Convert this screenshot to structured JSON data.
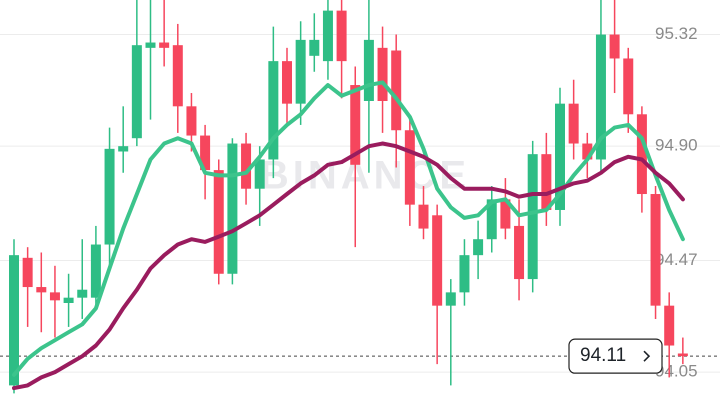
{
  "chart_data": {
    "type": "candlestick",
    "watermark": "BINANCE",
    "up_color": "#2ebd85",
    "down_color": "#f6465d",
    "ylim": [
      93.93,
      95.45
    ],
    "yticks": [
      95.32,
      {
        "value": 94.9,
        "label": "94.90"
      },
      94.47,
      94.05
    ],
    "grid": true,
    "last_price": 94.11,
    "open": [
      94.0,
      94.48,
      94.37,
      94.35,
      94.31,
      94.33,
      94.33,
      94.53,
      94.88,
      94.93,
      95.27,
      95.29,
      95.28,
      95.05,
      94.94,
      94.81,
      94.42,
      94.91,
      94.74,
      94.85,
      95.22,
      95.06,
      95.24,
      95.22,
      95.41,
      95.13,
      95.07,
      95.27,
      95.26,
      94.96,
      94.68,
      94.64,
      94.3,
      94.35,
      94.49,
      94.55,
      94.7,
      94.6,
      94.4,
      94.87,
      94.66,
      95.06,
      94.91,
      94.85,
      95.32,
      95.23,
      95.02,
      94.72,
      94.3,
      94.12
    ],
    "high": [
      94.55,
      94.52,
      94.5,
      94.45,
      94.42,
      94.55,
      94.6,
      94.97,
      95.05,
      95.45,
      95.45,
      95.45,
      95.36,
      95.1,
      94.98,
      94.85,
      94.93,
      94.95,
      94.9,
      95.35,
      95.27,
      95.37,
      95.4,
      95.45,
      95.45,
      95.2,
      95.45,
      95.35,
      95.32,
      95.0,
      94.75,
      94.68,
      94.4,
      94.55,
      94.62,
      94.75,
      94.78,
      94.7,
      94.92,
      94.95,
      95.12,
      95.15,
      94.95,
      95.45,
      95.45,
      95.27,
      95.05,
      94.75,
      94.35,
      94.18
    ],
    "low": [
      93.97,
      94.22,
      94.2,
      94.18,
      94.22,
      94.25,
      94.3,
      94.45,
      94.8,
      94.9,
      95.0,
      95.2,
      94.95,
      94.88,
      94.7,
      94.38,
      94.38,
      94.68,
      94.6,
      94.78,
      94.98,
      94.98,
      95.18,
      95.15,
      95.08,
      94.52,
      94.8,
      94.95,
      94.82,
      94.6,
      94.55,
      94.08,
      94.0,
      94.3,
      94.4,
      94.5,
      94.55,
      94.32,
      94.35,
      94.6,
      94.6,
      94.85,
      94.78,
      94.8,
      95.1,
      94.95,
      94.65,
      94.25,
      94.03,
      94.08
    ],
    "close": [
      94.49,
      94.37,
      94.35,
      94.32,
      94.33,
      94.36,
      94.53,
      94.89,
      94.9,
      95.28,
      95.29,
      95.27,
      95.05,
      94.94,
      94.81,
      94.42,
      94.91,
      94.74,
      94.85,
      95.22,
      95.06,
      95.3,
      95.3,
      95.41,
      95.22,
      94.83,
      95.3,
      95.07,
      94.96,
      94.68,
      94.59,
      94.3,
      94.35,
      94.49,
      94.55,
      94.7,
      94.59,
      94.4,
      94.87,
      94.66,
      95.06,
      94.91,
      94.85,
      95.32,
      95.23,
      95.02,
      94.72,
      94.3,
      94.15,
      94.11
    ],
    "lines": [
      {
        "color": "#3cc48c",
        "values": [
          94.04,
          94.1,
          94.14,
          94.17,
          94.2,
          94.23,
          94.29,
          94.44,
          94.59,
          94.72,
          94.85,
          94.91,
          94.93,
          94.91,
          94.8,
          94.79,
          94.79,
          94.8,
          94.86,
          94.93,
          94.98,
          95.02,
          95.08,
          95.13,
          95.09,
          95.11,
          95.13,
          95.14,
          95.08,
          95.01,
          94.89,
          94.74,
          94.67,
          94.63,
          94.64,
          94.69,
          94.7,
          94.64,
          94.65,
          94.66,
          94.72,
          94.79,
          94.85,
          94.93,
          94.97,
          94.98,
          94.93,
          94.79,
          94.66,
          94.55
        ]
      },
      {
        "color": "#9a1c5e",
        "values": [
          93.99,
          94.0,
          94.03,
          94.05,
          94.08,
          94.11,
          94.15,
          94.21,
          94.29,
          94.36,
          94.44,
          94.49,
          94.53,
          94.55,
          94.54,
          94.56,
          94.58,
          94.61,
          94.64,
          94.68,
          94.72,
          94.76,
          94.79,
          94.83,
          94.84,
          94.87,
          94.9,
          94.91,
          94.9,
          94.88,
          94.86,
          94.83,
          94.78,
          94.74,
          94.74,
          94.74,
          94.73,
          94.71,
          94.72,
          94.72,
          94.74,
          94.76,
          94.77,
          94.8,
          94.84,
          94.86,
          94.85,
          94.8,
          94.76,
          94.7
        ]
      }
    ]
  }
}
